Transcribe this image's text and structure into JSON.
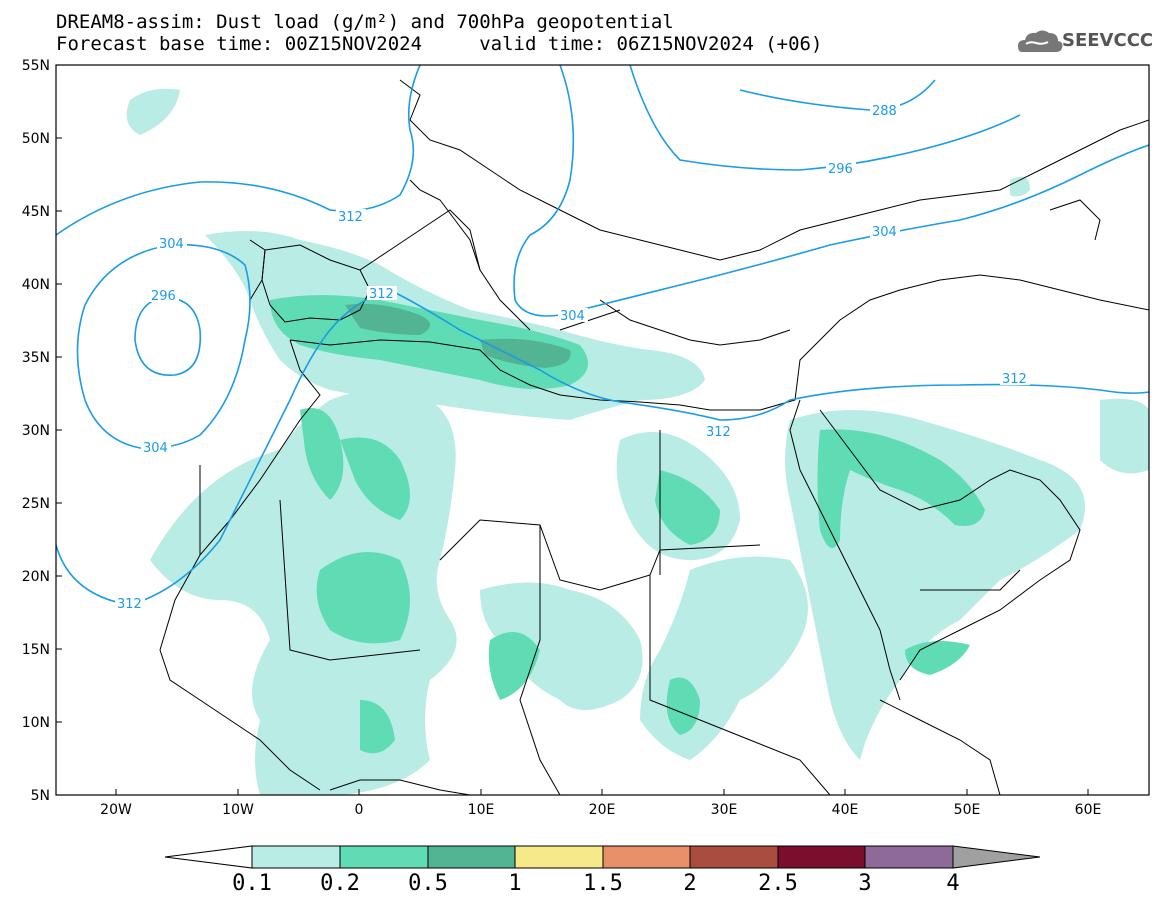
{
  "header": {
    "line1": "DREAM8-assim: Dust load (g/m²) and 700hPa geopotential",
    "line2": "Forecast base time: 00Z15NOV2024     valid time: 06Z15NOV2024 (+06)"
  },
  "logo": {
    "text": "SEEVCCC",
    "icon": "cloud-icon"
  },
  "axes": {
    "lat_labels": [
      "55N",
      "50N",
      "45N",
      "40N",
      "35N",
      "30N",
      "25N",
      "20N",
      "15N",
      "10N",
      "5N"
    ],
    "lon_labels": [
      "20W",
      "10W",
      "0",
      "10E",
      "20E",
      "30E",
      "40E",
      "50E",
      "60E"
    ]
  },
  "contours": {
    "labels": [
      "288",
      "296",
      "304",
      "312",
      "304",
      "296",
      "304",
      "312",
      "312",
      "304",
      "312",
      "312"
    ]
  },
  "colorbar": {
    "labels": [
      "0.1",
      "0.2",
      "0.5",
      "1",
      "1.5",
      "2",
      "2.5",
      "3",
      "4"
    ],
    "colors": [
      "#b8ece4",
      "#5fdcb4",
      "#52b493",
      "#f5e98a",
      "#e8906a",
      "#a94e3e",
      "#7a0e2c",
      "#8e6a9a"
    ]
  },
  "colors": {
    "contour_line": "#1a9ce6",
    "dust_light": "#b8ece4",
    "dust_mid": "#5fdcb4",
    "dust_dark": "#52b493",
    "dust_darker": "#4a8c72"
  }
}
